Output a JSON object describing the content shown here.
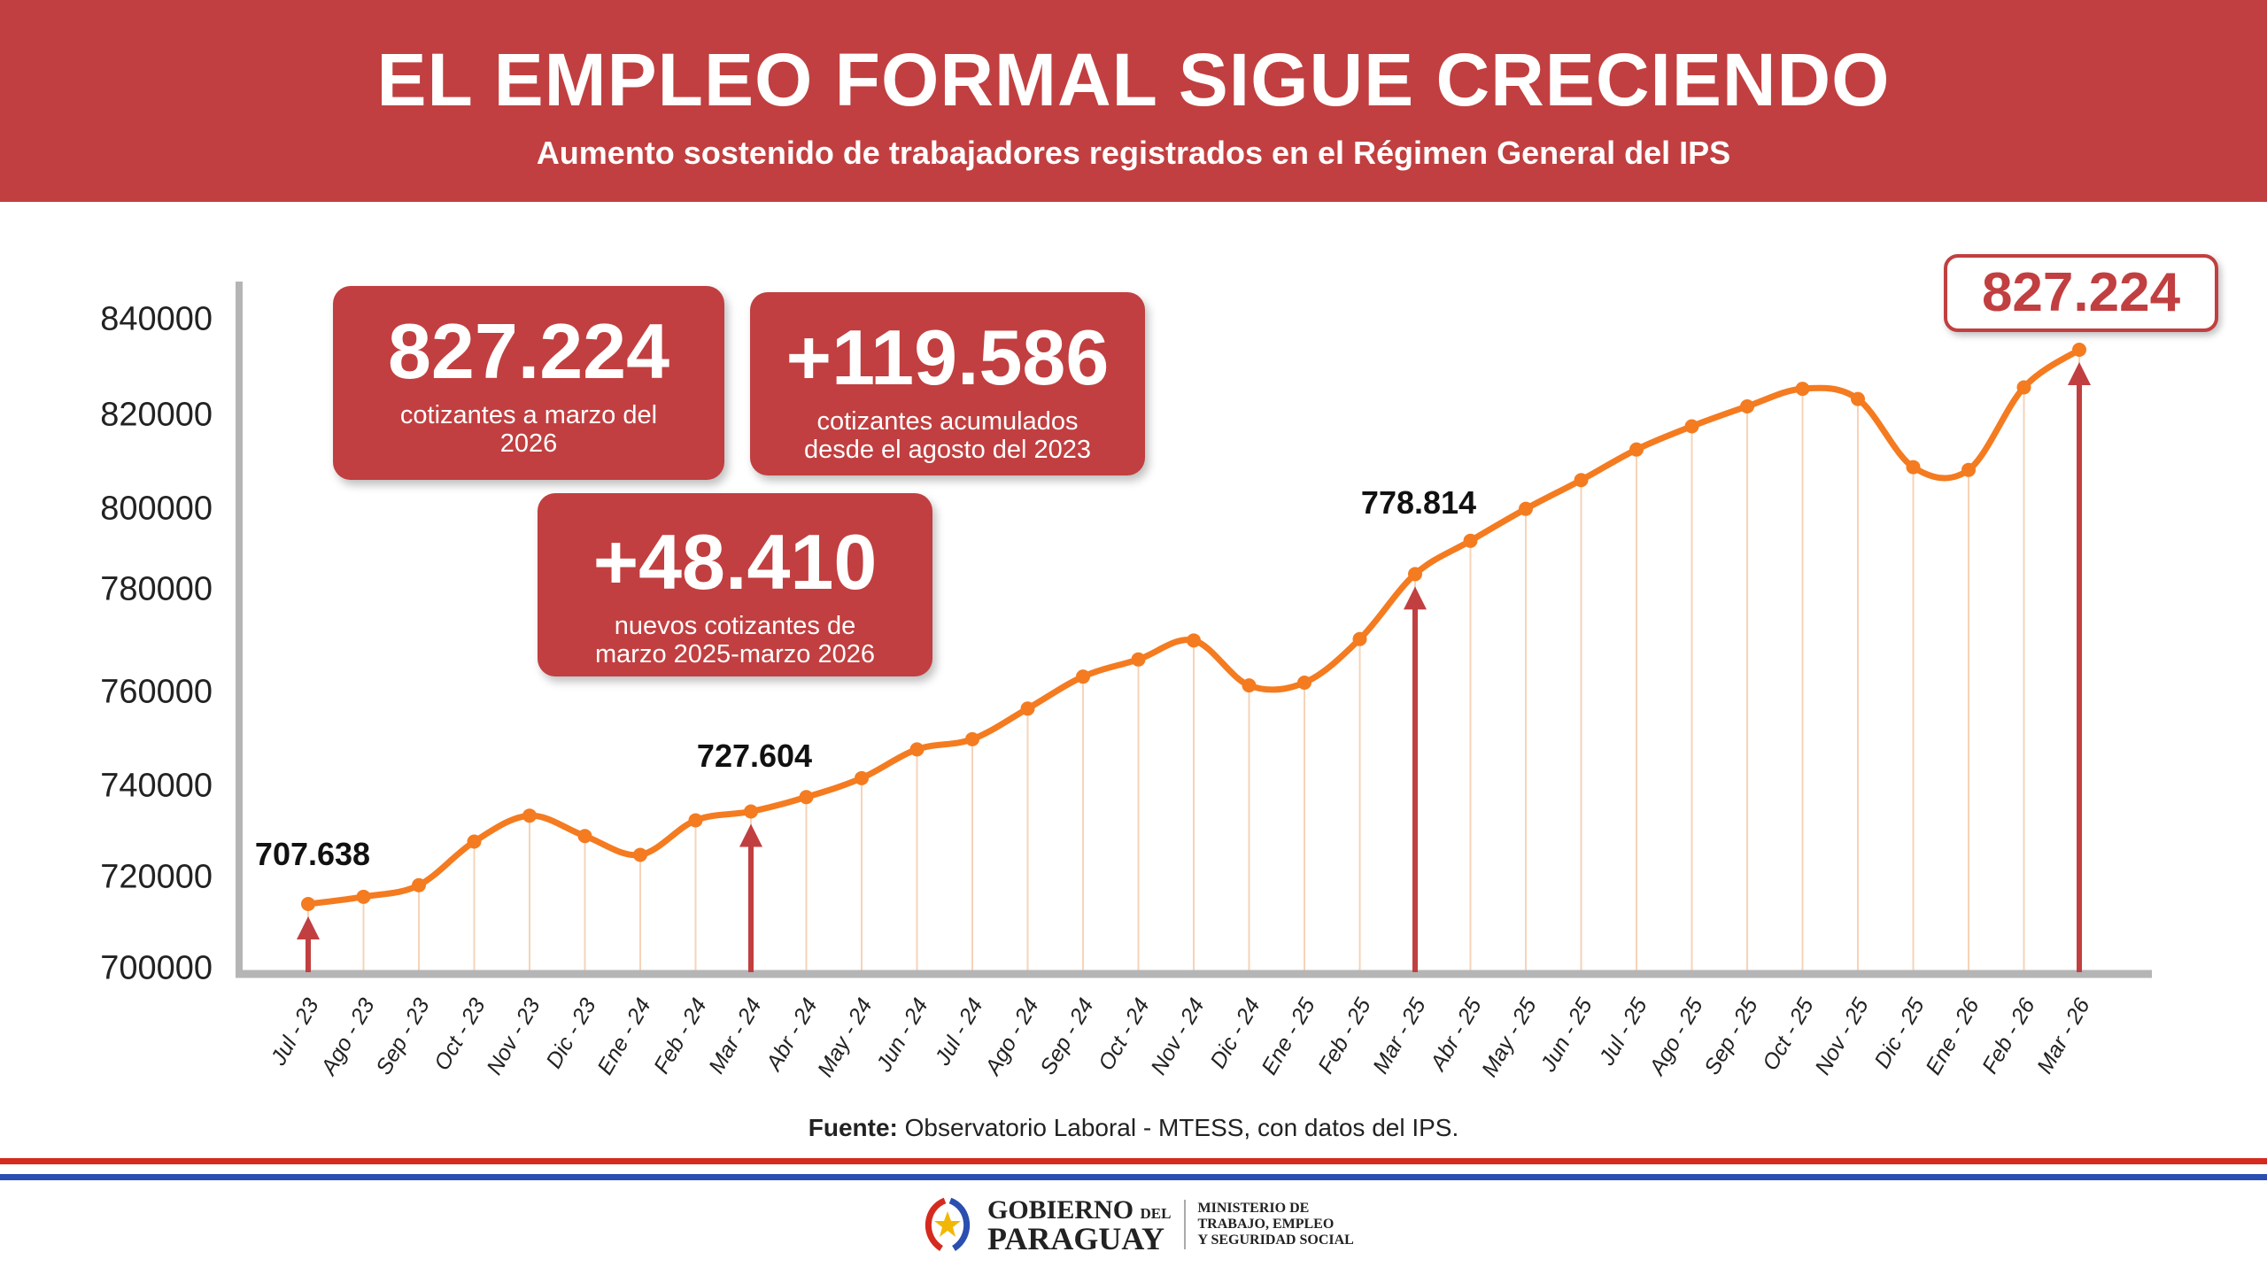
{
  "header": {
    "title": "EL EMPLEO FORMAL SIGUE CRECIENDO",
    "subtitle": "Aumento sostenido de trabajadores registrados en el Régimen General del IPS"
  },
  "cards": [
    {
      "value": "827.224",
      "caption_1": "cotizantes a marzo del",
      "caption_2": "2026"
    },
    {
      "value": "+119.586",
      "caption_1": "cotizantes acumulados",
      "caption_2": "desde el agosto del 2023"
    },
    {
      "value": "+48.410",
      "caption_1": "nuevos cotizantes de",
      "caption_2": "marzo 2025-marzo 2026"
    }
  ],
  "final_badge": "827.224",
  "point_labels": [
    "707.638",
    "727.604",
    "778.814"
  ],
  "source": {
    "bold": "Fuente:",
    "text": " Observatorio Laboral - MTESS, con datos del IPS."
  },
  "footer": {
    "gob_1": "GOBIERNO",
    "gob_del": "DEL",
    "gob_2": "PARAGUAY",
    "min_1": "MINISTERIO DE",
    "min_2": "TRABAJO, EMPLEO",
    "min_3": "Y SEGURIDAD SOCIAL"
  },
  "colors": {
    "brand_red": "#c13f40",
    "line": "#f47b20",
    "grid": "#f6d3b8",
    "flag_red": "#d52b1e",
    "flag_blue": "#2a4fb0"
  },
  "chart_data": {
    "type": "line",
    "title": "EL EMPLEO FORMAL SIGUE CRECIENDO",
    "xlabel": "",
    "ylabel": "",
    "yticks": [
      "700000",
      "720000",
      "740000",
      "760000",
      "780000",
      "800000",
      "820000",
      "840000"
    ],
    "categories": [
      "Jul - 23",
      "Ago - 23",
      "Sep - 23",
      "Oct - 23",
      "Nov - 23",
      "Dic - 23",
      "Ene - 24",
      "Feb - 24",
      "Mar - 24",
      "Abr - 24",
      "May - 24",
      "Jun - 24",
      "Jul - 24",
      "Ago - 24",
      "Sep - 24",
      "Oct - 24",
      "Nov - 24",
      "Dic - 24",
      "Ene - 25",
      "Feb - 25",
      "Mar - 25",
      "Abr - 25",
      "May - 25",
      "Jun - 25",
      "Jul - 25",
      "Ago - 25",
      "Sep - 25",
      "Oct - 25",
      "Nov - 25",
      "Dic - 25",
      "Ene - 26",
      "Feb - 26",
      "Mar - 26"
    ],
    "series": [
      {
        "name": "Cotizantes",
        "values": [
          707638,
          709200,
          711700,
          721100,
          726700,
          722300,
          718250,
          725700,
          727604,
          730700,
          734800,
          741000,
          743200,
          749800,
          756700,
          760400,
          764500,
          754800,
          755400,
          764800,
          778814,
          786000,
          792900,
          799100,
          805700,
          810700,
          815000,
          818800,
          816600,
          801900,
          801300,
          819100,
          827224
        ]
      }
    ],
    "highlighted": [
      0,
      8,
      20,
      32
    ],
    "grid": false
  }
}
